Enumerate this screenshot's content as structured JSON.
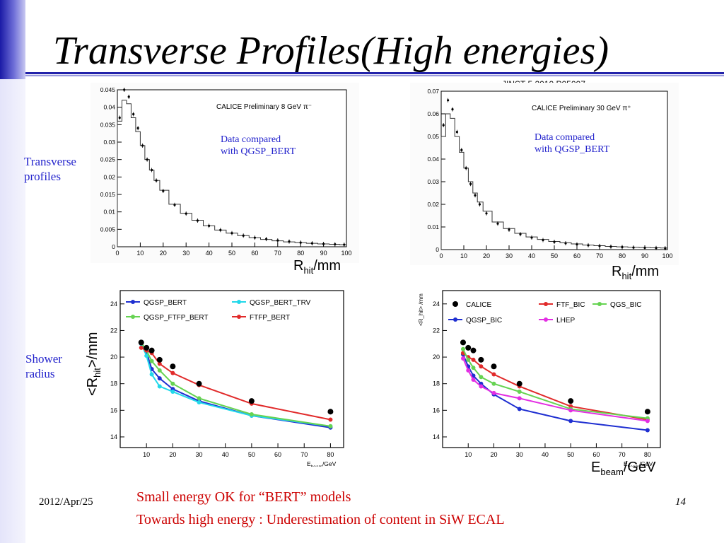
{
  "slide": {
    "title": "Transverse Profiles(High energies)",
    "reference": "JINST 5 2010  P05007",
    "labels": {
      "transverse": "Transverse\nprofiles",
      "shower": "Shower\nradius"
    },
    "axis_rhit": {
      "r": "R",
      "sub": "hit",
      "unit": "/mm"
    },
    "axis_mean_rhit": {
      "pre": "<R",
      "sub": "hit",
      "post": ">/mm"
    },
    "axis_ebeam": {
      "e": "E",
      "sub": "beam",
      "unit": "/GeV"
    },
    "date": "2012/Apr/25",
    "page": "14",
    "note_line1": "Small energy OK for “BERT” models",
    "note_line2": "Towards high energy : Underestimation of content in SiW ECAL",
    "colors": {
      "accent": "#2222aa",
      "note": "#cc0000",
      "label": "#2222cc"
    }
  },
  "chart_data": [
    {
      "type": "line",
      "title": "CALICE Preliminary 8 GeV π⁻",
      "annotation": "Data compared\nwith QGSP_BERT",
      "xlim": [
        0,
        100
      ],
      "ylim": [
        0,
        0.045
      ],
      "xticks": [
        0,
        10,
        20,
        30,
        40,
        50,
        60,
        70,
        80,
        90,
        100
      ],
      "yticks": [
        0,
        0.005,
        0.01,
        0.015,
        0.02,
        0.025,
        0.03,
        0.035,
        0.04,
        0.045
      ],
      "ytick_labels": [
        "0",
        "0.005",
        "0.01",
        "0.015",
        "0.02",
        "0.025",
        "0.03",
        "0.035",
        "0.04",
        "0.045"
      ],
      "x": [
        1,
        3,
        5,
        7,
        9,
        11,
        13,
        15,
        17,
        20,
        25,
        30,
        35,
        40,
        45,
        50,
        55,
        60,
        65,
        70,
        75,
        80,
        85,
        90,
        95,
        99
      ],
      "series": [
        {
          "kind": "data",
          "values": [
            0.037,
            0.045,
            0.043,
            0.038,
            0.034,
            0.029,
            0.025,
            0.022,
            0.019,
            0.016,
            0.012,
            0.0095,
            0.0075,
            0.006,
            0.0048,
            0.0039,
            0.0032,
            0.0026,
            0.0022,
            0.0018,
            0.0015,
            0.0012,
            0.001,
            0.0008,
            0.0007,
            0.0006
          ]
        },
        {
          "kind": "mc",
          "values": [
            0.036,
            0.042,
            0.041,
            0.037,
            0.033,
            0.029,
            0.025,
            0.022,
            0.019,
            0.0162,
            0.0122,
            0.0096,
            0.0076,
            0.006,
            0.0048,
            0.0039,
            0.0032,
            0.0026,
            0.0021,
            0.0017,
            0.0014,
            0.0012,
            0.001,
            0.0008,
            0.0007,
            0.0006
          ]
        }
      ]
    },
    {
      "type": "line",
      "title": "CALICE Preliminary 30 GeV π⁺",
      "annotation": "Data compared\nwith QGSP_BERT",
      "xlim": [
        0,
        100
      ],
      "ylim": [
        0,
        0.07
      ],
      "xticks": [
        0,
        10,
        20,
        30,
        40,
        50,
        60,
        70,
        80,
        90,
        100
      ],
      "yticks": [
        0,
        0.01,
        0.02,
        0.03,
        0.04,
        0.05,
        0.06,
        0.07
      ],
      "ytick_labels": [
        "0",
        "0.01",
        "0.02",
        "0.03",
        "0.04",
        "0.05",
        "0.06",
        "0.07"
      ],
      "x": [
        1,
        3,
        5,
        7,
        9,
        11,
        13,
        15,
        17,
        20,
        25,
        30,
        35,
        40,
        45,
        50,
        55,
        60,
        65,
        70,
        75,
        80,
        85,
        90,
        95,
        99
      ],
      "series": [
        {
          "kind": "data",
          "values": [
            0.055,
            0.066,
            0.062,
            0.052,
            0.044,
            0.036,
            0.029,
            0.024,
            0.02,
            0.016,
            0.0115,
            0.0088,
            0.0068,
            0.0053,
            0.0042,
            0.0034,
            0.0028,
            0.0023,
            0.0019,
            0.0016,
            0.0013,
            0.0011,
            0.0009,
            0.0008,
            0.0007,
            0.0006
          ]
        },
        {
          "kind": "mc",
          "values": [
            0.05,
            0.06,
            0.058,
            0.05,
            0.043,
            0.036,
            0.03,
            0.025,
            0.021,
            0.017,
            0.0122,
            0.0093,
            0.0072,
            0.0056,
            0.0045,
            0.0036,
            0.003,
            0.0025,
            0.002,
            0.0017,
            0.0014,
            0.0012,
            0.001,
            0.0009,
            0.0008,
            0.0007
          ]
        }
      ]
    },
    {
      "type": "line",
      "xlabel": "E_beam / GeV",
      "xlabel_parts": {
        "e": "E",
        "sub": "beam",
        "unit": "/GeV"
      },
      "xlim": [
        0,
        85
      ],
      "ylim": [
        13.2,
        25
      ],
      "xticks": [
        10,
        20,
        30,
        40,
        50,
        60,
        70,
        80
      ],
      "yticks": [
        14,
        16,
        18,
        20,
        22,
        24
      ],
      "data_points": {
        "x": [
          8,
          10,
          12,
          15,
          20,
          30,
          50,
          80
        ],
        "y": [
          21.1,
          20.7,
          20.5,
          19.8,
          19.3,
          18.0,
          16.7,
          15.9
        ]
      },
      "series": [
        {
          "name": "QGSP_BERT",
          "color": "#1f2fd1",
          "x": [
            8,
            10,
            12,
            15,
            20,
            30,
            50,
            80
          ],
          "values": [
            21.0,
            20.4,
            19.1,
            18.4,
            17.6,
            16.7,
            15.6,
            14.7
          ]
        },
        {
          "name": "QGSP_BERT_TRV",
          "color": "#22d8ea",
          "x": [
            8,
            10,
            12,
            15,
            20,
            30,
            50,
            80
          ],
          "values": [
            21.0,
            20.1,
            18.7,
            17.8,
            17.4,
            16.6,
            15.6,
            14.8
          ]
        },
        {
          "name": "QGSP_FTFP_BERT",
          "color": "#66d352",
          "x": [
            8,
            10,
            12,
            15,
            20,
            30,
            50,
            80
          ],
          "values": [
            21.1,
            20.5,
            19.7,
            19.0,
            18.0,
            16.9,
            15.7,
            14.8
          ]
        },
        {
          "name": "FTFP_BERT",
          "color": "#e12a2a",
          "x": [
            8,
            10,
            12,
            15,
            20,
            30,
            50,
            80
          ],
          "values": [
            20.7,
            20.5,
            20.3,
            19.5,
            18.8,
            17.9,
            16.5,
            15.3
          ]
        }
      ]
    },
    {
      "type": "line",
      "ylabel_small": "<R_hit> /mm",
      "xlabel": "E_beam / GeV",
      "xlim": [
        0,
        85
      ],
      "ylim": [
        13.2,
        25
      ],
      "xticks": [
        10,
        20,
        30,
        40,
        50,
        60,
        70,
        80
      ],
      "yticks": [
        14,
        16,
        18,
        20,
        22,
        24
      ],
      "data_name": "CALICE",
      "data_points": {
        "x": [
          8,
          10,
          12,
          15,
          20,
          30,
          50,
          80
        ],
        "y": [
          21.1,
          20.7,
          20.5,
          19.8,
          19.3,
          18.0,
          16.7,
          15.9
        ]
      },
      "series": [
        {
          "name": "QGSP_BIC",
          "color": "#1f2fd1",
          "x": [
            8,
            10,
            12,
            15,
            20,
            30,
            50,
            80
          ],
          "values": [
            20.2,
            19.3,
            18.6,
            18.0,
            17.2,
            16.1,
            15.2,
            14.5
          ]
        },
        {
          "name": "FTF_BIC",
          "color": "#e12a2a",
          "x": [
            8,
            10,
            12,
            15,
            20,
            30,
            50,
            80
          ],
          "values": [
            20.3,
            20.0,
            19.8,
            19.3,
            18.7,
            17.8,
            16.3,
            15.3
          ]
        },
        {
          "name": "QGS_BIC",
          "color": "#66d352",
          "x": [
            8,
            10,
            12,
            15,
            20,
            30,
            50,
            80
          ],
          "values": [
            20.6,
            19.8,
            19.2,
            18.5,
            18.0,
            17.4,
            16.1,
            15.4
          ]
        },
        {
          "name": "LHEP",
          "color": "#e32ee3",
          "x": [
            8,
            10,
            12,
            15,
            20,
            30,
            50,
            80
          ],
          "values": [
            19.9,
            19.0,
            18.3,
            17.8,
            17.3,
            16.9,
            16.0,
            15.2
          ]
        }
      ]
    }
  ]
}
